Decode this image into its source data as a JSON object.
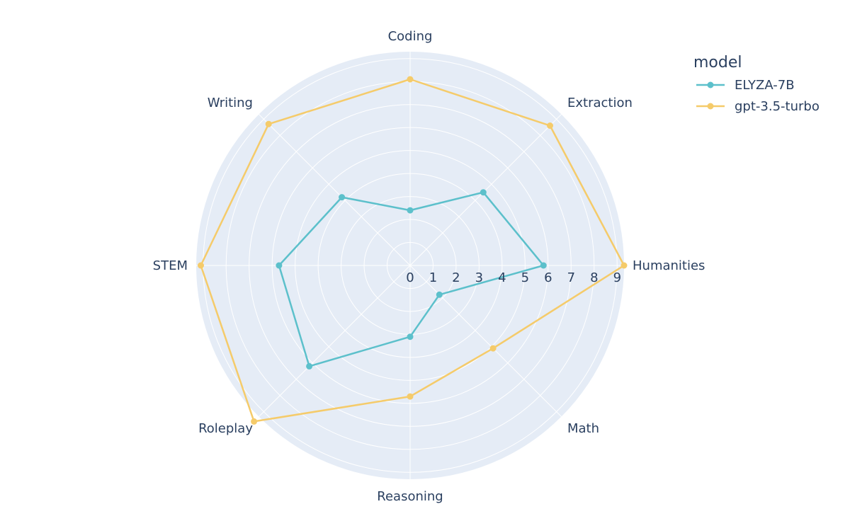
{
  "chart_data": {
    "type": "radar",
    "categories": [
      "Humanities",
      "Math",
      "Reasoning",
      "Roleplay",
      "STEM",
      "Writing",
      "Coding",
      "Extraction"
    ],
    "radial_ticks": [
      "0",
      "1",
      "2",
      "3",
      "4",
      "5",
      "6",
      "7",
      "8",
      "9"
    ],
    "r_range": [
      0,
      9.3
    ],
    "legend": {
      "title": "model",
      "placement": "top-right"
    },
    "series": [
      {
        "name": "ELYZA-7B",
        "color": "#5cc0cb",
        "values": [
          5.8,
          1.8,
          3.1,
          6.2,
          5.7,
          4.2,
          2.4,
          4.5
        ]
      },
      {
        "name": "gpt-3.5-turbo",
        "color": "#f5cb6a",
        "values": [
          9.3,
          5.1,
          5.7,
          9.6,
          9.1,
          8.7,
          8.1,
          8.6
        ]
      }
    ],
    "colors": {
      "polar_background": "#e5ecf6",
      "grid": "#ffffff"
    }
  }
}
